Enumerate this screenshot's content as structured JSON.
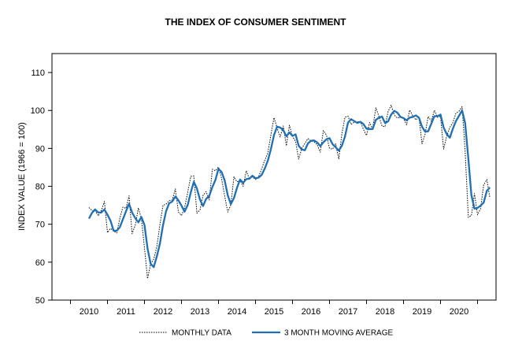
{
  "chart_data": {
    "type": "line",
    "title": "THE INDEX OF CONSUMER SENTIMENT",
    "ylabel": "INDEX VALUE (1966 = 100)",
    "xlabel": "",
    "xlim": [
      2009.0,
      2021.0
    ],
    "ylim": [
      50,
      115
    ],
    "yticks": [
      50,
      60,
      70,
      80,
      90,
      100,
      110
    ],
    "xticks": [
      2010,
      2011,
      2012,
      2013,
      2014,
      2015,
      2016,
      2017,
      2018,
      2019,
      2020
    ],
    "grid": false,
    "legend_position": "bottom",
    "series": [
      {
        "name": "MONTHLY DATA",
        "style": "dotted",
        "color": "#000000",
        "x": [
          2010.0,
          2010.083,
          2010.167,
          2010.25,
          2010.333,
          2010.417,
          2010.5,
          2010.583,
          2010.667,
          2010.75,
          2010.833,
          2010.917,
          2011.0,
          2011.083,
          2011.167,
          2011.25,
          2011.333,
          2011.417,
          2011.5,
          2011.583,
          2011.667,
          2011.75,
          2011.833,
          2011.917,
          2012.0,
          2012.083,
          2012.167,
          2012.25,
          2012.333,
          2012.417,
          2012.5,
          2012.583,
          2012.667,
          2012.75,
          2012.833,
          2012.917,
          2013.0,
          2013.083,
          2013.167,
          2013.25,
          2013.333,
          2013.417,
          2013.5,
          2013.583,
          2013.667,
          2013.75,
          2013.833,
          2013.917,
          2014.0,
          2014.083,
          2014.167,
          2014.25,
          2014.333,
          2014.417,
          2014.5,
          2014.583,
          2014.667,
          2014.75,
          2014.833,
          2014.917,
          2015.0,
          2015.083,
          2015.167,
          2015.25,
          2015.333,
          2015.417,
          2015.5,
          2015.583,
          2015.667,
          2015.75,
          2015.833,
          2015.917,
          2016.0,
          2016.083,
          2016.167,
          2016.25,
          2016.333,
          2016.417,
          2016.5,
          2016.583,
          2016.667,
          2016.75,
          2016.833,
          2016.917,
          2017.0,
          2017.083,
          2017.167,
          2017.25,
          2017.333,
          2017.417,
          2017.5,
          2017.583,
          2017.667,
          2017.75,
          2017.833,
          2017.917,
          2018.0,
          2018.083,
          2018.167,
          2018.25,
          2018.333,
          2018.417,
          2018.5,
          2018.583,
          2018.667,
          2018.75,
          2018.833,
          2018.917,
          2019.0,
          2019.083,
          2019.167,
          2019.25,
          2019.333,
          2019.417,
          2019.5,
          2019.583,
          2019.667,
          2019.75,
          2019.833,
          2019.917,
          2020.0,
          2020.083,
          2020.167,
          2020.25,
          2020.333,
          2020.417,
          2020.5,
          2020.583,
          2020.667,
          2020.75,
          2020.833
        ],
        "y": [
          74.4,
          73.6,
          73.6,
          72.2,
          73.6,
          76.0,
          67.8,
          68.9,
          68.2,
          67.7,
          71.6,
          74.5,
          74.2,
          77.5,
          67.5,
          69.8,
          74.3,
          71.5,
          63.7,
          55.7,
          59.5,
          60.8,
          64.1,
          69.9,
          75.0,
          75.3,
          76.2,
          76.4,
          79.3,
          73.2,
          72.3,
          74.3,
          78.3,
          82.6,
          82.7,
          72.9,
          73.8,
          77.6,
          78.6,
          76.4,
          84.5,
          84.1,
          85.1,
          82.1,
          77.5,
          73.2,
          75.1,
          82.5,
          81.2,
          81.6,
          80.0,
          84.1,
          81.9,
          82.5,
          81.8,
          82.5,
          84.6,
          86.9,
          88.8,
          93.6,
          98.1,
          95.4,
          93.0,
          95.9,
          90.7,
          96.1,
          93.1,
          91.9,
          87.2,
          90.0,
          91.3,
          92.6,
          92.0,
          91.7,
          91.0,
          89.0,
          94.7,
          93.5,
          90.0,
          89.8,
          91.2,
          87.2,
          93.8,
          98.2,
          98.5,
          96.3,
          96.9,
          97.0,
          97.1,
          95.0,
          93.4,
          96.8,
          95.1,
          100.7,
          98.5,
          95.9,
          95.7,
          99.7,
          101.4,
          98.8,
          98.0,
          98.2,
          97.9,
          96.2,
          100.1,
          98.6,
          97.5,
          98.3,
          91.2,
          93.8,
          98.4,
          97.2,
          100.0,
          98.2,
          98.4,
          89.8,
          93.2,
          95.5,
          96.8,
          99.3,
          99.8,
          101.0,
          89.1,
          71.8,
          72.3,
          78.1,
          72.5,
          74.1,
          80.4,
          81.8,
          76.9
        ]
      },
      {
        "name": "3 MONTH MOVING AVERAGE",
        "style": "solid",
        "color": "#1f6fb5",
        "x": [
          2010.0,
          2010.083,
          2010.167,
          2010.25,
          2010.333,
          2010.417,
          2010.5,
          2010.583,
          2010.667,
          2010.75,
          2010.833,
          2010.917,
          2011.0,
          2011.083,
          2011.167,
          2011.25,
          2011.333,
          2011.417,
          2011.5,
          2011.583,
          2011.667,
          2011.75,
          2011.833,
          2011.917,
          2012.0,
          2012.083,
          2012.167,
          2012.25,
          2012.333,
          2012.417,
          2012.5,
          2012.583,
          2012.667,
          2012.75,
          2012.833,
          2012.917,
          2013.0,
          2013.083,
          2013.167,
          2013.25,
          2013.333,
          2013.417,
          2013.5,
          2013.583,
          2013.667,
          2013.75,
          2013.833,
          2013.917,
          2014.0,
          2014.083,
          2014.167,
          2014.25,
          2014.333,
          2014.417,
          2014.5,
          2014.583,
          2014.667,
          2014.75,
          2014.833,
          2014.917,
          2015.0,
          2015.083,
          2015.167,
          2015.25,
          2015.333,
          2015.417,
          2015.5,
          2015.583,
          2015.667,
          2015.75,
          2015.833,
          2015.917,
          2016.0,
          2016.083,
          2016.167,
          2016.25,
          2016.333,
          2016.417,
          2016.5,
          2016.583,
          2016.667,
          2016.75,
          2016.833,
          2016.917,
          2017.0,
          2017.083,
          2017.167,
          2017.25,
          2017.333,
          2017.417,
          2017.5,
          2017.583,
          2017.667,
          2017.75,
          2017.833,
          2017.917,
          2018.0,
          2018.083,
          2018.167,
          2018.25,
          2018.333,
          2018.417,
          2018.5,
          2018.583,
          2018.667,
          2018.75,
          2018.833,
          2018.917,
          2019.0,
          2019.083,
          2019.167,
          2019.25,
          2019.333,
          2019.417,
          2019.5,
          2019.583,
          2019.667,
          2019.75,
          2019.833,
          2019.917,
          2020.0,
          2020.083,
          2020.167,
          2020.25,
          2020.333,
          2020.417,
          2020.5,
          2020.583,
          2020.667,
          2020.75,
          2020.833
        ],
        "y": [
          71.5,
          73.0,
          73.9,
          73.1,
          73.1,
          73.9,
          72.5,
          70.9,
          68.3,
          68.3,
          69.2,
          71.3,
          73.4,
          75.4,
          73.1,
          71.6,
          70.5,
          71.9,
          69.8,
          63.6,
          59.6,
          58.7,
          61.5,
          64.9,
          69.7,
          73.4,
          75.5,
          76.0,
          77.3,
          76.3,
          74.9,
          73.3,
          75.0,
          78.4,
          81.2,
          79.4,
          76.5,
          74.8,
          76.7,
          77.5,
          79.8,
          81.7,
          84.6,
          83.8,
          81.6,
          77.6,
          75.3,
          76.9,
          79.6,
          81.8,
          80.9,
          81.9,
          82.0,
          82.8,
          82.1,
          82.3,
          83.0,
          84.7,
          86.8,
          89.8,
          93.5,
          95.7,
          95.5,
          94.8,
          93.2,
          94.2,
          93.3,
          93.7,
          90.7,
          89.7,
          89.5,
          91.3,
          92.0,
          92.1,
          91.6,
          90.6,
          91.6,
          92.4,
          92.7,
          91.1,
          90.3,
          89.4,
          90.7,
          93.1,
          96.8,
          97.7,
          97.2,
          96.7,
          97.0,
          96.4,
          95.2,
          95.1,
          95.1,
          97.5,
          98.1,
          98.4,
          96.7,
          97.1,
          98.9,
          99.9,
          99.4,
          98.3,
          98.0,
          97.4,
          98.1,
          98.3,
          98.7,
          98.1,
          95.7,
          94.4,
          94.5,
          96.5,
          98.5,
          98.5,
          98.9,
          95.5,
          93.8,
          92.8,
          95.2,
          97.2,
          98.6,
          100.0,
          96.6,
          87.3,
          77.7,
          74.1,
          74.3,
          74.9,
          75.7,
          78.8,
          79.7
        ]
      }
    ]
  }
}
